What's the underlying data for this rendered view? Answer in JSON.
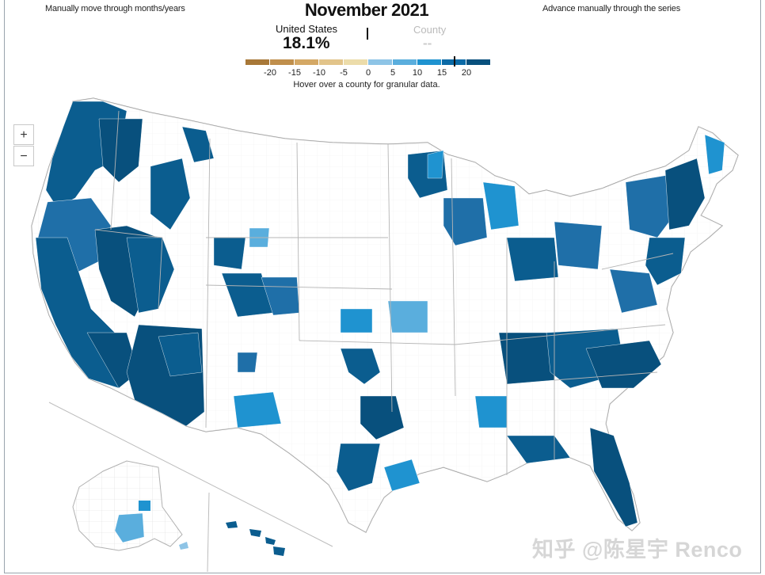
{
  "header": {
    "title": "November 2021",
    "left_note": "Manually move through months/years",
    "right_note": "Advance manually through the series"
  },
  "summary": {
    "us_label": "United States",
    "us_value": "18.1%",
    "county_label": "County",
    "county_value": "--"
  },
  "legend": {
    "colors": [
      "#a87838",
      "#c08f4c",
      "#d4a865",
      "#e2c48a",
      "#ecdcaa",
      "#8ec4e6",
      "#5aaedd",
      "#1f93d0",
      "#0b6aa6",
      "#08507d"
    ],
    "ticks": [
      "-20",
      "-15",
      "-10",
      "-5",
      "0",
      "5",
      "10",
      "15",
      "20"
    ],
    "hint": "Hover over a county for granular data."
  },
  "controls": {
    "zoom_in": "+",
    "zoom_out": "−"
  },
  "watermark": "知乎 @陈星宇 Renco"
}
